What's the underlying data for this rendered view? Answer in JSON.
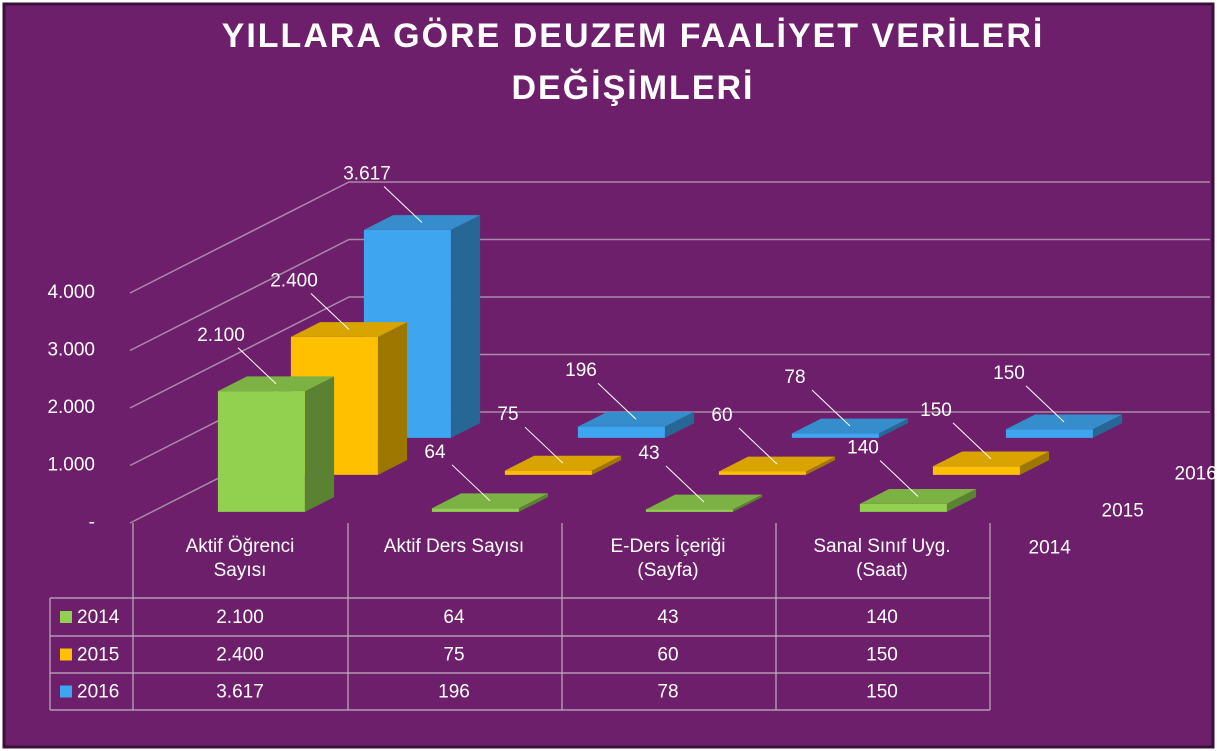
{
  "chart_data": {
    "type": "bar3d",
    "title": "YILLARA GÖRE DEUZEM FAALİYET VERİLERİ DEĞİŞİMLERİ",
    "categories": [
      "Aktif Öğrenci Sayısı",
      "Aktif Ders Sayısı",
      "E-Ders İçeriği (Sayfa)",
      "Sanal Sınıf Uyg. (Saat)"
    ],
    "series": [
      {
        "name": "2014",
        "color": "#92d050",
        "values": [
          2100,
          64,
          43,
          140
        ],
        "value_labels": [
          "2.100",
          "64",
          "43",
          "140"
        ]
      },
      {
        "name": "2015",
        "color": "#ffc000",
        "values": [
          2400,
          75,
          60,
          150
        ],
        "value_labels": [
          "2.400",
          "75",
          "60",
          "150"
        ]
      },
      {
        "name": "2016",
        "color": "#3ea6f0",
        "values": [
          3617,
          196,
          78,
          150
        ],
        "value_labels": [
          "3.617",
          "196",
          "78",
          "150"
        ]
      }
    ],
    "ylim": [
      0,
      4000
    ],
    "yticks": [
      {
        "value": 0,
        "label": "-"
      },
      {
        "value": 1000,
        "label": "1.000"
      },
      {
        "value": 2000,
        "label": "2.000"
      },
      {
        "value": 3000,
        "label": "3.000"
      },
      {
        "value": 4000,
        "label": "4.000"
      }
    ],
    "grid": true,
    "data_table": true
  }
}
